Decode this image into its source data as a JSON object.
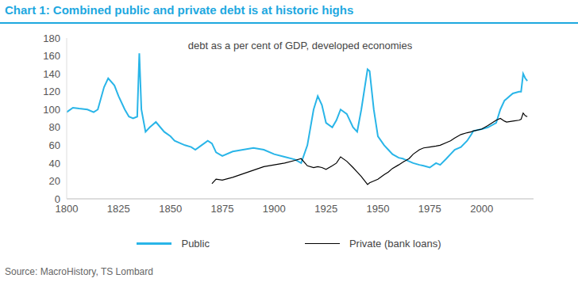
{
  "chart_data": {
    "type": "line",
    "title": "Chart 1: Combined public and private debt is at historic highs",
    "subtitle": "debt as a per cent of GDP, developed economies",
    "source": "Source: MacroHistory, TS Lombard",
    "x": [
      1800,
      1803,
      1806,
      1810,
      1813,
      1815,
      1818,
      1820,
      1823,
      1825,
      1828,
      1830,
      1832,
      1834,
      1835,
      1836,
      1838,
      1840,
      1843,
      1847,
      1850,
      1852,
      1855,
      1857,
      1860,
      1862,
      1865,
      1868,
      1870,
      1872,
      1875,
      1880,
      1885,
      1890,
      1895,
      1900,
      1905,
      1910,
      1913,
      1916,
      1919,
      1921,
      1923,
      1925,
      1928,
      1930,
      1932,
      1935,
      1938,
      1940,
      1942,
      1945,
      1946,
      1948,
      1950,
      1953,
      1955,
      1957,
      1960,
      1962,
      1965,
      1967,
      1970,
      1972,
      1975,
      1978,
      1980,
      1983,
      1985,
      1987,
      1990,
      1993,
      1995,
      1996,
      2000,
      2003,
      2007,
      2009,
      2011,
      2012,
      2015,
      2018,
      2019,
      2020,
      2021,
      2022
    ],
    "xlim": [
      1800,
      2025
    ],
    "xticks": [
      1800,
      1825,
      1850,
      1875,
      1900,
      1925,
      1950,
      1975,
      2000
    ],
    "ylim": [
      0,
      180
    ],
    "yticks": [
      0,
      20,
      40,
      60,
      80,
      100,
      120,
      140,
      160,
      180
    ],
    "grid": false,
    "legend": "bottom",
    "series": [
      {
        "name": "Public",
        "color": "#29b5e8",
        "values": [
          97,
          102,
          101,
          100,
          97,
          100,
          125,
          135,
          127,
          115,
          100,
          92,
          90,
          92,
          163,
          100,
          75,
          80,
          86,
          75,
          70,
          65,
          62,
          60,
          58,
          55,
          60,
          65,
          62,
          52,
          48,
          53,
          55,
          57,
          55,
          50,
          47,
          44,
          40,
          60,
          100,
          115,
          105,
          85,
          80,
          88,
          100,
          95,
          80,
          75,
          100,
          145,
          143,
          100,
          70,
          60,
          55,
          50,
          46,
          45,
          42,
          40,
          38,
          37,
          35,
          40,
          38,
          45,
          50,
          55,
          58,
          65,
          72,
          76,
          78,
          80,
          85,
          100,
          110,
          112,
          118,
          120,
          120,
          140,
          135,
          132
        ]
      },
      {
        "name": "Private (bank loans)",
        "color": "#000000",
        "values": [
          null,
          null,
          null,
          null,
          null,
          null,
          null,
          null,
          null,
          null,
          null,
          null,
          null,
          null,
          null,
          null,
          null,
          null,
          null,
          null,
          null,
          null,
          null,
          null,
          null,
          null,
          null,
          null,
          17,
          22,
          21,
          24,
          28,
          32,
          36,
          38,
          40,
          43,
          45,
          37,
          35,
          36,
          35,
          33,
          37,
          40,
          47,
          42,
          35,
          30,
          25,
          16,
          18,
          20,
          22,
          27,
          30,
          34,
          38,
          41,
          45,
          50,
          55,
          57,
          58,
          59,
          60,
          63,
          65,
          68,
          72,
          74,
          75,
          76,
          78,
          82,
          88,
          90,
          87,
          86,
          87,
          88,
          89,
          96,
          93,
          92
        ]
      }
    ]
  }
}
